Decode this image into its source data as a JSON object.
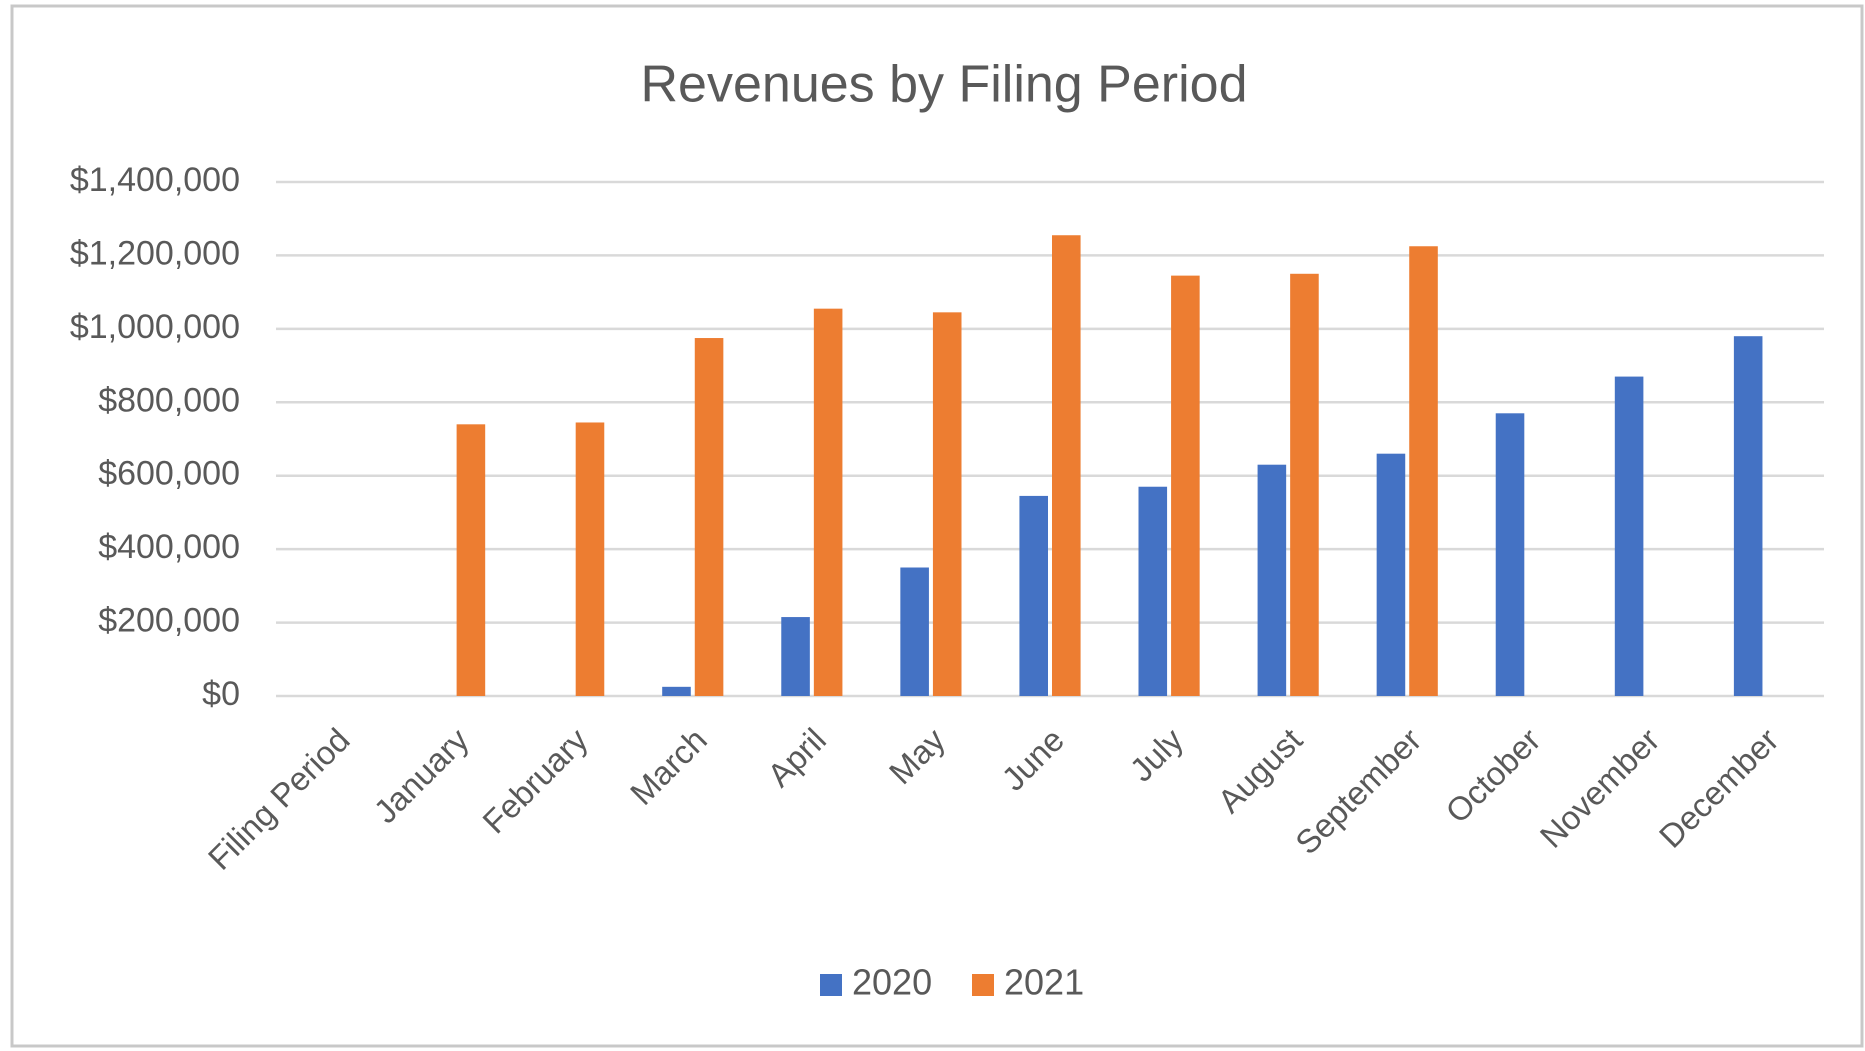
{
  "chart_data": {
    "type": "bar",
    "title": "Revenues by Filing Period",
    "categories": [
      "Filing Period",
      "January",
      "February",
      "March",
      "April",
      "May",
      "June",
      "July",
      "August",
      "September",
      "October",
      "November",
      "December"
    ],
    "series": [
      {
        "name": "2020",
        "color": "#4472c4",
        "values": [
          null,
          null,
          null,
          25000,
          215000,
          350000,
          545000,
          570000,
          630000,
          660000,
          770000,
          870000,
          980000
        ]
      },
      {
        "name": "2021",
        "color": "#ed7d31",
        "values": [
          null,
          740000,
          745000,
          975000,
          1055000,
          1045000,
          1255000,
          1145000,
          1150000,
          1225000,
          null,
          null,
          null
        ]
      }
    ],
    "ylim": [
      0,
      1400000
    ],
    "yticks": [
      {
        "value": 0,
        "label": "$0"
      },
      {
        "value": 200000,
        "label": "$200,000"
      },
      {
        "value": 400000,
        "label": "$400,000"
      },
      {
        "value": 600000,
        "label": "$600,000"
      },
      {
        "value": 800000,
        "label": "$800,000"
      },
      {
        "value": 1000000,
        "label": "$1,000,000"
      },
      {
        "value": 1200000,
        "label": "$1,200,000"
      },
      {
        "value": 1400000,
        "label": "$1,400,000"
      }
    ],
    "grid": true,
    "legend": "bottom"
  }
}
